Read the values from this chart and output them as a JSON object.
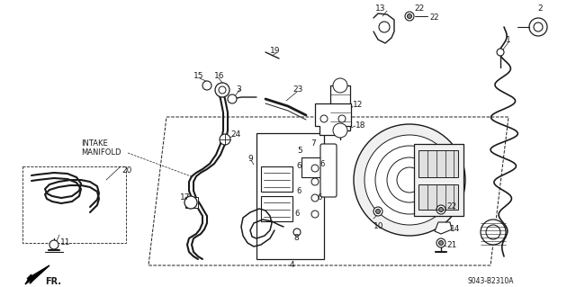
{
  "background_color": "#ffffff",
  "line_color": "#1a1a1a",
  "fig_width": 6.4,
  "fig_height": 3.19,
  "dpi": 100,
  "diagram_ref": "S043-B2310A",
  "intake_manifold": "INTAKE\nMANIFOLD",
  "fr_label": "FR."
}
